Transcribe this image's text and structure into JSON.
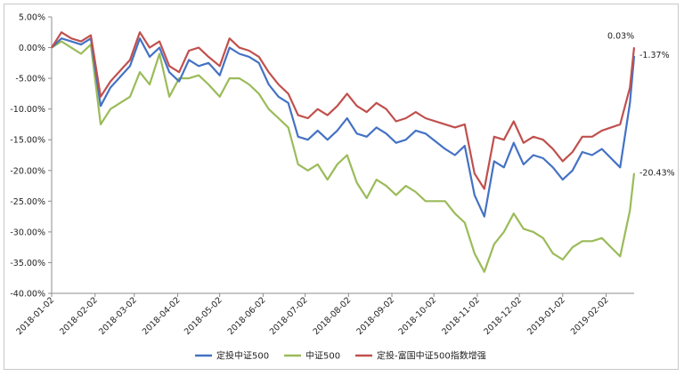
{
  "chart_data": {
    "type": "line",
    "title": "",
    "xlabel": "",
    "ylabel": "",
    "ylim": [
      -40,
      5
    ],
    "y_ticks": [
      "5.00%",
      "0.00%",
      "-5.00%",
      "-10.00%",
      "-15.00%",
      "-20.00%",
      "-25.00%",
      "-30.00%",
      "-35.00%",
      "-40.00%"
    ],
    "x_ticks": [
      "2018-01-02",
      "2018-02-02",
      "2018-03-02",
      "2018-04-02",
      "2018-05-02",
      "2018-06-02",
      "2018-07-02",
      "2018-08-02",
      "2018-09-02",
      "2018-10-02",
      "2018-11-02",
      "2018-12-02",
      "2019-01-02",
      "2019-02-02"
    ],
    "grid": "none",
    "legend_position": "bottom",
    "x": [
      "2018-01-02",
      "2018-01-09",
      "2018-01-16",
      "2018-01-23",
      "2018-01-30",
      "2018-02-06",
      "2018-02-13",
      "2018-02-27",
      "2018-03-06",
      "2018-03-13",
      "2018-03-20",
      "2018-03-27",
      "2018-04-03",
      "2018-04-10",
      "2018-04-17",
      "2018-04-24",
      "2018-05-02",
      "2018-05-09",
      "2018-05-16",
      "2018-05-23",
      "2018-05-30",
      "2018-06-06",
      "2018-06-13",
      "2018-06-20",
      "2018-06-27",
      "2018-07-04",
      "2018-07-11",
      "2018-07-18",
      "2018-07-25",
      "2018-08-01",
      "2018-08-08",
      "2018-08-15",
      "2018-08-22",
      "2018-08-29",
      "2018-09-05",
      "2018-09-12",
      "2018-09-19",
      "2018-09-26",
      "2018-10-10",
      "2018-10-17",
      "2018-10-24",
      "2018-10-31",
      "2018-11-07",
      "2018-11-14",
      "2018-11-21",
      "2018-11-28",
      "2018-12-05",
      "2018-12-12",
      "2018-12-19",
      "2018-12-26",
      "2019-01-02",
      "2019-01-09",
      "2019-01-16",
      "2019-01-23",
      "2019-01-30",
      "2019-02-12",
      "2019-02-19",
      "2019-02-22"
    ],
    "series": [
      {
        "name": "定投中证500",
        "color": "#4472c4",
        "values": [
          0.0,
          1.5,
          1.0,
          0.5,
          1.5,
          -9.5,
          -6.5,
          -3.0,
          1.5,
          -1.5,
          0.0,
          -4.0,
          -5.5,
          -2.0,
          -3.0,
          -2.5,
          -4.5,
          0.0,
          -1.0,
          -1.5,
          -2.5,
          -6.0,
          -8.0,
          -9.0,
          -14.5,
          -15.0,
          -13.5,
          -15.0,
          -13.5,
          -11.5,
          -14.0,
          -14.5,
          -13.0,
          -14.0,
          -15.5,
          -15.0,
          -13.5,
          -14.0,
          -16.5,
          -17.5,
          -16.0,
          -24.0,
          -27.5,
          -18.5,
          -19.5,
          -15.5,
          -19.0,
          -17.5,
          -18.0,
          -19.5,
          -21.5,
          -20.0,
          -17.0,
          -17.5,
          -16.5,
          -19.5,
          -9.0,
          -1.37
        ]
      },
      {
        "name": "中证500",
        "color": "#9bbb59",
        "values": [
          0.0,
          1.0,
          0.0,
          -1.0,
          0.5,
          -12.5,
          -10.0,
          -8.0,
          -4.0,
          -6.0,
          -1.0,
          -8.0,
          -5.0,
          -5.0,
          -4.5,
          -6.0,
          -8.0,
          -5.0,
          -5.0,
          -6.0,
          -7.5,
          -10.0,
          -11.5,
          -13.0,
          -19.0,
          -20.0,
          -19.0,
          -21.5,
          -19.0,
          -17.5,
          -22.0,
          -24.5,
          -21.5,
          -22.5,
          -24.0,
          -22.5,
          -23.5,
          -25.0,
          -25.0,
          -27.0,
          -28.5,
          -33.5,
          -36.5,
          -32.0,
          -30.0,
          -27.0,
          -29.5,
          -30.0,
          -31.0,
          -33.5,
          -34.5,
          -32.5,
          -31.5,
          -31.5,
          -31.0,
          -34.0,
          -26.5,
          -20.43
        ]
      },
      {
        "name": "定投-富国中证500指数增强",
        "color": "#c0504d",
        "values": [
          0.0,
          2.5,
          1.5,
          1.0,
          2.0,
          -8.0,
          -5.5,
          -2.0,
          2.5,
          0.0,
          1.0,
          -3.0,
          -4.0,
          -0.5,
          0.0,
          -1.5,
          -3.0,
          1.5,
          0.0,
          -0.5,
          -1.5,
          -4.0,
          -6.0,
          -7.5,
          -11.0,
          -11.5,
          -10.0,
          -11.0,
          -9.5,
          -7.5,
          -9.5,
          -10.5,
          -9.0,
          -10.0,
          -12.0,
          -11.5,
          -10.5,
          -11.5,
          -12.5,
          -13.0,
          -12.5,
          -20.5,
          -23.0,
          -14.5,
          -15.0,
          -12.0,
          -15.5,
          -14.5,
          -15.0,
          -16.5,
          -18.5,
          -17.0,
          -14.5,
          -14.5,
          -13.5,
          -12.5,
          -6.5,
          0.03
        ]
      }
    ],
    "end_labels": [
      "0.03%",
      "-1.37%",
      "-20.43%"
    ]
  }
}
